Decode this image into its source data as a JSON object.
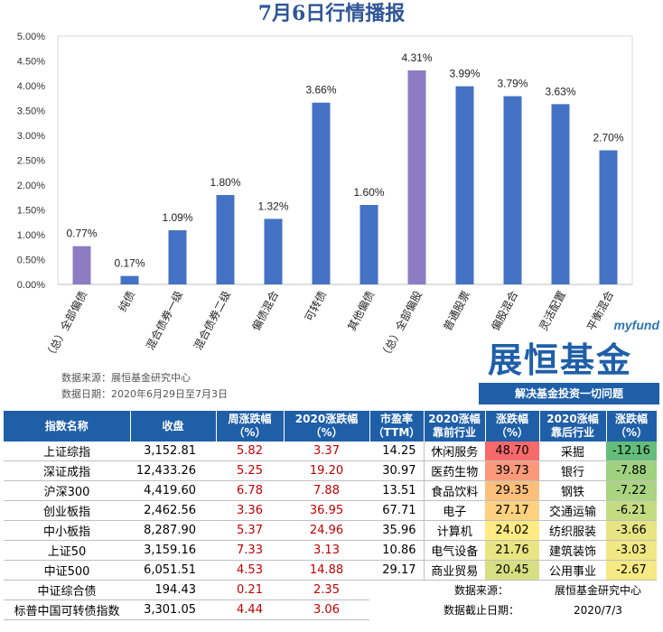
{
  "title": "7月6日行情播报",
  "chart_data": {
    "type": "bar",
    "categories": [
      "（总）全部偏债",
      "纯债",
      "混合债券一级",
      "混合债券二级",
      "偏债混合",
      "可转债",
      "其他偏债",
      "（总）全部偏股",
      "普通股票",
      "偏股混合",
      "灵活配置",
      "平衡混合"
    ],
    "values": [
      0.77,
      0.17,
      1.09,
      1.8,
      1.32,
      3.66,
      1.6,
      4.31,
      3.99,
      3.79,
      3.63,
      2.7
    ],
    "value_labels": [
      "0.77%",
      "0.17%",
      "1.09%",
      "1.80%",
      "1.32%",
      "3.66%",
      "1.60%",
      "4.31%",
      "3.99%",
      "3.79%",
      "3.63%",
      "2.70%"
    ],
    "highlight": [
      true,
      false,
      false,
      false,
      false,
      false,
      false,
      true,
      false,
      false,
      false,
      false
    ],
    "y_ticks": [
      "0.00%",
      "0.50%",
      "1.00%",
      "1.50%",
      "2.00%",
      "2.50%",
      "3.00%",
      "3.50%",
      "4.00%",
      "4.50%",
      "5.00%"
    ],
    "ylim": [
      0,
      5
    ],
    "grid": false,
    "colors": {
      "bar": "#4472c4",
      "highlight": "#8e7cc3"
    }
  },
  "chart_source": "数据来源：展恒基金研究中心",
  "chart_date": "数据日期：2020年6月29日至7月3日",
  "brand": {
    "tag": "myfund",
    "name": "展恒基金",
    "slogan": "解决基金投资一切问题"
  },
  "table": {
    "headers": [
      "指数名称",
      "收盘",
      "周涨跌幅（%）",
      "2020涨跌幅（%）",
      "市盈率（TTM）",
      "2020涨幅靠前行业",
      "涨跌幅（%）",
      "2020涨幅靠后行业",
      "涨跌幅（%）"
    ],
    "rows": [
      {
        "name": "上证综指",
        "close": "3,152.81",
        "week": "5.82",
        "ytd": "3.37",
        "pe": "14.25",
        "top_ind": "休闲服务",
        "top_chg": "48.70",
        "bot_ind": "采掘",
        "bot_chg": "-12.16"
      },
      {
        "name": "深证成指",
        "close": "12,433.26",
        "week": "5.25",
        "ytd": "19.20",
        "pe": "30.97",
        "top_ind": "医药生物",
        "top_chg": "39.73",
        "bot_ind": "银行",
        "bot_chg": "-7.88"
      },
      {
        "name": "沪深300",
        "close": "4,419.60",
        "week": "6.78",
        "ytd": "7.88",
        "pe": "13.51",
        "top_ind": "食品饮料",
        "top_chg": "29.35",
        "bot_ind": "钢铁",
        "bot_chg": "-7.22"
      },
      {
        "name": "创业板指",
        "close": "2,462.56",
        "week": "3.36",
        "ytd": "36.95",
        "pe": "67.71",
        "top_ind": "电子",
        "top_chg": "27.17",
        "bot_ind": "交通运输",
        "bot_chg": "-6.21"
      },
      {
        "name": "中小板指",
        "close": "8,287.90",
        "week": "5.37",
        "ytd": "24.96",
        "pe": "35.96",
        "top_ind": "计算机",
        "top_chg": "24.02",
        "bot_ind": "纺织服装",
        "bot_chg": "-3.66"
      },
      {
        "name": "上证50",
        "close": "3,159.16",
        "week": "7.33",
        "ytd": "3.13",
        "pe": "10.86",
        "top_ind": "电气设备",
        "top_chg": "21.76",
        "bot_ind": "建筑装饰",
        "bot_chg": "-3.03"
      },
      {
        "name": "中证500",
        "close": "6,051.51",
        "week": "4.53",
        "ytd": "14.88",
        "pe": "29.17",
        "top_ind": "商业贸易",
        "top_chg": "20.45",
        "bot_ind": "公用事业",
        "bot_chg": "-2.67"
      }
    ],
    "extra_rows": [
      {
        "name": "中证综合债",
        "close": "194.43",
        "week": "0.21",
        "ytd": "2.35"
      },
      {
        "name": "标普中国可转债指数",
        "close": "3,301.05",
        "week": "4.44",
        "ytd": "3.06"
      }
    ],
    "note_source_label": "数据来源：",
    "note_source_value": "展恒基金研究中心",
    "note_date_label": "数据截止日期：",
    "note_date_value": "2020/7/3",
    "top_colors": [
      "#f8696b",
      "#fa9a7a",
      "#fcbf7b",
      "#fdd17f",
      "#ffeb84",
      "#e9e583",
      "#d6df81"
    ],
    "bot_colors": [
      "#63be7b",
      "#9fd17f",
      "#aad480",
      "#c3dc82",
      "#e6e483",
      "#f1e783",
      "#f7e983"
    ]
  }
}
